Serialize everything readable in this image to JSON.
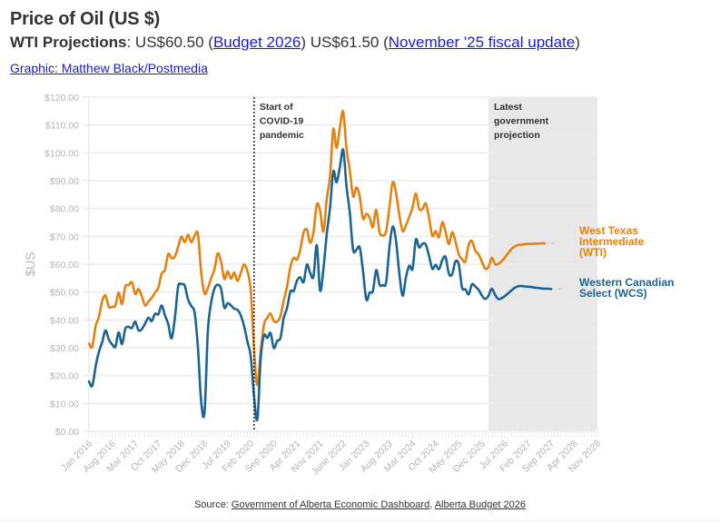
{
  "header": {
    "title": "Price of Oil (US $)",
    "subtitle_bold": "WTI Projections",
    "subtitle_colon": ": ",
    "value1": "US$60.50 ",
    "link1": "Budget 2026",
    "value2": " US$61.50 ",
    "link2": "November '25 fiscal update",
    "credit": "Graphic: Matthew Black/Postmedia"
  },
  "source": {
    "prefix": "Source: ",
    "link1": "Government of Alberta Economic Dashboard",
    "sep": ", ",
    "link2": "Alberta Budget 2026"
  },
  "colors": {
    "wti": "#e5820f",
    "wcs": "#1b6593",
    "grid": "#ececec",
    "projection_band": "#e8e8e8"
  },
  "chart_data": {
    "type": "line",
    "title": "Price of Oil (US $)",
    "xlabel": "",
    "ylabel": "$US",
    "ylim": [
      0,
      120
    ],
    "yticks": [
      "$0.00",
      "$10.00",
      "$20.00",
      "$30.00",
      "$40.00",
      "$50.00",
      "$60.00",
      "$70.00",
      "$80.00",
      "$90.00",
      "$100.00",
      "$110.00",
      "$120.00"
    ],
    "xlim_months_from_jan2016": [
      0,
      154
    ],
    "xticks": [
      "Jan 2016",
      "Aug 2016",
      "Mar 2017",
      "Oct 2017",
      "May 2018",
      "Dec 2018",
      "Jul 2019",
      "Feb 2020",
      "Sep 2020",
      "Apr 2021",
      "Nov 2021",
      "June 2022",
      "Jan 2023",
      "Aug 2023",
      "Mar 2024",
      "Oct 2024",
      "May 2025",
      "Dec 2025",
      "Jul 2026",
      "Feb 2027",
      "Sep 2027",
      "Apr 2028",
      "Nov 2028"
    ],
    "grid": true,
    "annotations": [
      {
        "text": [
          "Start of",
          "COVID-19",
          "pandemic"
        ],
        "at_month": 50,
        "style": "dotted-vertical-line"
      },
      {
        "text": [
          "Latest",
          "government",
          "projection"
        ],
        "from_month": 121,
        "to_month": 154,
        "style": "shaded-band"
      }
    ],
    "series": [
      {
        "name": "West Texas Intermediate (WTI)",
        "label_lines": [
          "West Texas",
          "Intermediate",
          "(WTI)"
        ],
        "start": "Jan 2016",
        "monthly_values": [
          31.5,
          30.3,
          37.8,
          41.0,
          46.7,
          48.8,
          44.7,
          44.7,
          45.2,
          49.8,
          45.7,
          52.0,
          52.5,
          53.5,
          49.3,
          51.1,
          48.5,
          45.2,
          46.6,
          48.0,
          49.8,
          51.6,
          56.6,
          57.9,
          63.7,
          62.2,
          62.7,
          66.3,
          69.9,
          67.9,
          70.6,
          67.9,
          70.2,
          70.8,
          57.0,
          49.5,
          51.4,
          54.9,
          58.2,
          63.9,
          60.9,
          54.7,
          57.4,
          54.8,
          57.0,
          54.0,
          57.0,
          59.9,
          57.5,
          50.5,
          29.2,
          16.6,
          28.5,
          38.3,
          40.7,
          42.3,
          39.6,
          39.4,
          41.4,
          47.0,
          52.1,
          59.0,
          62.3,
          61.7,
          65.2,
          71.4,
          72.5,
          67.7,
          71.6,
          81.5,
          79.2,
          71.7,
          83.2,
          91.6,
          108.5,
          101.8,
          109.3,
          114.8,
          101.6,
          93.7,
          84.3,
          87.6,
          84.3,
          76.4,
          78.1,
          76.8,
          73.3,
          79.5,
          71.6,
          70.3,
          71.8,
          80.5,
          89.4,
          85.6,
          77.7,
          71.9,
          74.0,
          77.0,
          80.4,
          85.4,
          80.0,
          79.8,
          81.8,
          76.7,
          70.2,
          71.9,
          69.7,
          75.1,
          71.7,
          67.2,
          71.5,
          68.2,
          63.5,
          61.8,
          61.0,
          67.0,
          68.3,
          64.8,
          63.6,
          60.9,
          58.4,
          59.0,
          62.3,
          60.0,
          60.1,
          61.0,
          62.5,
          64.0,
          65.5,
          66.4,
          66.9,
          67.0,
          67.2,
          67.3,
          67.3,
          67.4,
          67.4,
          67.5,
          67.5
        ],
        "color": "#e5820f"
      },
      {
        "name": "Western Canadian Select (WCS)",
        "label_lines": [
          "Western Canadian",
          "Select (WCS)"
        ],
        "start": "Jan 2016",
        "monthly_values": [
          17.9,
          16.3,
          23.2,
          28.5,
          32.0,
          36.2,
          33.0,
          31.2,
          30.4,
          35.5,
          31.3,
          36.8,
          37.5,
          37.1,
          39.4,
          36.3,
          36.7,
          38.7,
          40.8,
          39.6,
          42.2,
          42.0,
          45.2,
          41.7,
          38.5,
          33.4,
          40.5,
          51.9,
          52.8,
          52.3,
          47.3,
          45.0,
          42.5,
          30.0,
          10.5,
          6.9,
          35.8,
          46.1,
          51.3,
          52.6,
          51.2,
          44.4,
          46.0,
          45.2,
          44.0,
          43.6,
          41.5,
          37.7,
          32.2,
          26.8,
          12.5,
          4.4,
          26.1,
          34.4,
          33.5,
          35.3,
          29.9,
          32.5,
          33.5,
          40.8,
          44.3,
          50.2,
          50.4,
          54.1,
          55.3,
          53.6,
          59.9,
          56.9,
          55.6,
          66.8,
          50.6,
          58.3,
          70.6,
          80.2,
          93.3,
          89.4,
          95.0,
          101.1,
          88.1,
          78.4,
          65.2,
          65.2,
          66.0,
          57.6,
          47.3,
          49.8,
          50.4,
          57.9,
          52.7,
          52.5,
          53.5,
          66.0,
          73.5,
          68.3,
          56.7,
          48.7,
          55.3,
          59.4,
          58.4,
          68.8,
          66.0,
          67.3,
          67.1,
          63.0,
          58.3,
          59.8,
          58.2,
          61.5,
          62.6,
          56.6,
          56.4,
          61.0,
          59.9,
          51.6,
          51.0,
          49.2,
          52.8,
          52.0,
          50.8,
          48.8,
          47.5,
          48.7,
          51.2,
          49.0,
          47.5,
          47.8,
          48.6,
          49.6,
          50.6,
          51.6,
          52.1,
          52.2,
          52.0,
          51.9,
          51.8,
          51.6,
          51.5,
          51.3,
          51.2,
          51.2,
          51.1
        ],
        "color": "#1b6593"
      }
    ]
  }
}
